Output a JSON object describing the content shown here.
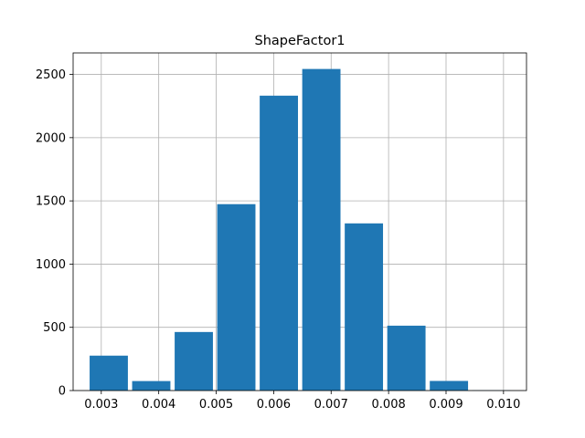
{
  "chart_data": {
    "type": "bar",
    "title": "ShapeFactor1",
    "xlabel": "",
    "ylabel": "",
    "bins": [
      {
        "x0": 0.00276,
        "x1": 0.0035,
        "value": 276
      },
      {
        "x0": 0.0035,
        "x1": 0.00424,
        "value": 75
      },
      {
        "x0": 0.00424,
        "x1": 0.00498,
        "value": 463
      },
      {
        "x0": 0.00498,
        "x1": 0.00572,
        "value": 1474
      },
      {
        "x0": 0.00572,
        "x1": 0.00646,
        "value": 2332
      },
      {
        "x0": 0.00646,
        "x1": 0.0072,
        "value": 2543
      },
      {
        "x0": 0.0072,
        "x1": 0.00794,
        "value": 1322
      },
      {
        "x0": 0.00794,
        "x1": 0.00868,
        "value": 513
      },
      {
        "x0": 0.00868,
        "x1": 0.00942,
        "value": 76
      },
      {
        "x0": 0.00942,
        "x1": 0.01016,
        "value": 2
      }
    ],
    "xlim": [
      0.00251,
      0.0104
    ],
    "ylim": [
      0,
      2670
    ],
    "xticks": [
      "0.003",
      "0.004",
      "0.005",
      "0.006",
      "0.007",
      "0.008",
      "0.009",
      "0.010"
    ],
    "xtick_values": [
      0.003,
      0.004,
      0.005,
      0.006,
      0.007,
      0.008,
      0.009,
      0.01
    ],
    "yticks": [
      "0",
      "500",
      "1000",
      "1500",
      "2000",
      "2500"
    ],
    "ytick_values": [
      0,
      500,
      1000,
      1500,
      2000,
      2500
    ],
    "grid": true,
    "bar_color": "#1f77b4",
    "grid_color": "#b0b0b0"
  }
}
